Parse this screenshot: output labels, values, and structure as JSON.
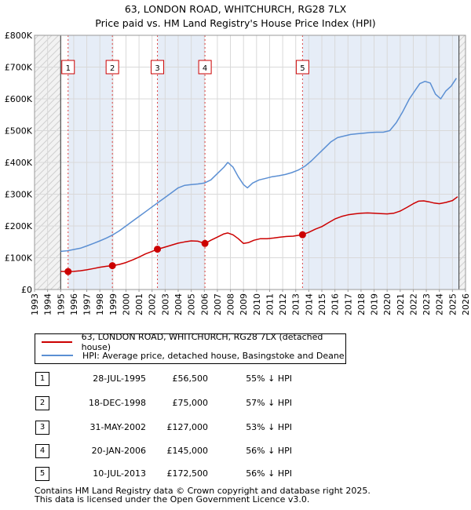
{
  "title_line1": "63, LONDON ROAD, WHITCHURCH, RG28 7LX",
  "title_line2": "Price paid vs. HM Land Registry's House Price Index (HPI)",
  "chart_data": {
    "type": "line",
    "title": "63, LONDON ROAD, WHITCHURCH, RG28 7LX — Price paid vs. HM Land Registry's House Price Index (HPI)",
    "xlabel": "",
    "ylabel": "",
    "xlim": [
      1993,
      2026
    ],
    "ylim": [
      0,
      800000
    ],
    "y_ticks": [
      0,
      100000,
      200000,
      300000,
      400000,
      500000,
      600000,
      700000,
      800000
    ],
    "y_tick_labels": [
      "£0",
      "£100K",
      "£200K",
      "£300K",
      "£400K",
      "£500K",
      "£600K",
      "£700K",
      "£800K"
    ],
    "x_ticks": [
      1993,
      1994,
      1995,
      1996,
      1997,
      1998,
      1999,
      2000,
      2001,
      2002,
      2003,
      2004,
      2005,
      2006,
      2007,
      2008,
      2009,
      2010,
      2011,
      2012,
      2013,
      2014,
      2015,
      2016,
      2017,
      2018,
      2019,
      2020,
      2021,
      2022,
      2023,
      2024,
      2025,
      2026
    ],
    "x_tick_labels": [
      "1993",
      "1994",
      "1995",
      "1996",
      "1997",
      "1998",
      "1999",
      "2000",
      "2001",
      "2002",
      "2003",
      "2004",
      "2005",
      "2006",
      "2007",
      "2008",
      "2009",
      "2010",
      "2011",
      "2012",
      "2013",
      "2014",
      "2015",
      "2016",
      "2017",
      "2018",
      "2019",
      "2020",
      "2021",
      "2022",
      "2023",
      "2024",
      "2025",
      "2026"
    ],
    "data_range_start": 1995.0,
    "data_range_end": 2025.5,
    "series": [
      {
        "name": "63, LONDON ROAD, WHITCHURCH, RG28 7LX (detached house)",
        "color": "#cc0000",
        "x": [
          1995.0,
          1995.57,
          1996.0,
          1996.5,
          1997.0,
          1997.5,
          1998.0,
          1998.5,
          1998.96,
          1999.5,
          2000.0,
          2000.5,
          2001.0,
          2001.5,
          2002.0,
          2002.41,
          2002.8,
          2003.2,
          2003.6,
          2004.0,
          2004.5,
          2005.0,
          2005.5,
          2006.05,
          2006.5,
          2007.0,
          2007.5,
          2007.8,
          2008.2,
          2008.6,
          2009.0,
          2009.4,
          2009.8,
          2010.3,
          2010.8,
          2011.3,
          2011.8,
          2012.3,
          2012.8,
          2013.52,
          2014.0,
          2014.5,
          2015.0,
          2015.5,
          2016.0,
          2016.5,
          2017.0,
          2017.5,
          2018.0,
          2018.5,
          2019.0,
          2019.5,
          2020.0,
          2020.5,
          2021.0,
          2021.5,
          2022.0,
          2022.4,
          2022.8,
          2023.2,
          2023.6,
          2024.0,
          2024.5,
          2025.0,
          2025.4
        ],
        "values": [
          57000,
          56500,
          57000,
          59000,
          62000,
          66000,
          70000,
          73000,
          75000,
          79000,
          85000,
          93000,
          102000,
          112000,
          120000,
          127000,
          131000,
          136000,
          141000,
          146000,
          150000,
          153000,
          152000,
          145000,
          155000,
          165000,
          175000,
          178000,
          172000,
          160000,
          145000,
          148000,
          155000,
          160000,
          160000,
          162000,
          165000,
          167000,
          168000,
          172500,
          180000,
          190000,
          198000,
          210000,
          222000,
          230000,
          235000,
          238000,
          240000,
          241000,
          240000,
          239000,
          238000,
          240000,
          247000,
          258000,
          270000,
          278000,
          279000,
          276000,
          272000,
          270000,
          274000,
          280000,
          292000
        ]
      },
      {
        "name": "HPI: Average price, detached house, Basingstoke and Deane",
        "color": "#5b8fd3",
        "x": [
          1995.0,
          1995.5,
          1996.0,
          1996.5,
          1997.0,
          1997.5,
          1998.0,
          1998.5,
          1999.0,
          1999.5,
          2000.0,
          2000.5,
          2001.0,
          2001.5,
          2002.0,
          2002.5,
          2003.0,
          2003.5,
          2004.0,
          2004.5,
          2005.0,
          2005.5,
          2006.0,
          2006.5,
          2007.0,
          2007.5,
          2007.8,
          2008.2,
          2008.6,
          2009.0,
          2009.3,
          2009.7,
          2010.2,
          2010.7,
          2011.2,
          2011.7,
          2012.2,
          2012.7,
          2013.2,
          2013.7,
          2014.2,
          2014.7,
          2015.2,
          2015.7,
          2016.2,
          2016.7,
          2017.2,
          2017.7,
          2018.2,
          2018.7,
          2019.2,
          2019.7,
          2020.2,
          2020.7,
          2021.2,
          2021.7,
          2022.2,
          2022.5,
          2022.9,
          2023.3,
          2023.7,
          2024.1,
          2024.5,
          2024.9,
          2025.3
        ],
        "values": [
          120000,
          122000,
          126000,
          130000,
          137000,
          145000,
          153000,
          162000,
          172000,
          185000,
          200000,
          215000,
          230000,
          245000,
          260000,
          275000,
          290000,
          305000,
          320000,
          328000,
          330000,
          332000,
          335000,
          345000,
          365000,
          385000,
          400000,
          385000,
          355000,
          330000,
          320000,
          335000,
          345000,
          350000,
          355000,
          358000,
          362000,
          368000,
          376000,
          388000,
          405000,
          425000,
          445000,
          465000,
          478000,
          483000,
          488000,
          490000,
          492000,
          494000,
          495000,
          495000,
          500000,
          525000,
          560000,
          600000,
          630000,
          648000,
          655000,
          650000,
          615000,
          600000,
          625000,
          640000,
          665000
        ]
      }
    ],
    "transactions": [
      {
        "label": "1",
        "x": 1995.57,
        "price": 56500
      },
      {
        "label": "2",
        "x": 1998.96,
        "price": 75000
      },
      {
        "label": "3",
        "x": 2002.41,
        "price": 127000
      },
      {
        "label": "4",
        "x": 2006.05,
        "price": 145000
      },
      {
        "label": "5",
        "x": 2013.52,
        "price": 172500
      }
    ]
  },
  "legend": {
    "items": [
      {
        "label": "63, LONDON ROAD, WHITCHURCH, RG28 7LX (detached house)",
        "color": "#cc0000"
      },
      {
        "label": "HPI: Average price, detached house, Basingstoke and Deane",
        "color": "#5b8fd3"
      }
    ]
  },
  "table": {
    "rows": [
      {
        "num": "1",
        "date": "28-JUL-1995",
        "price": "£56,500",
        "hpi": "55% ↓ HPI"
      },
      {
        "num": "2",
        "date": "18-DEC-1998",
        "price": "£75,000",
        "hpi": "57% ↓ HPI"
      },
      {
        "num": "3",
        "date": "31-MAY-2002",
        "price": "£127,000",
        "hpi": "53% ↓ HPI"
      },
      {
        "num": "4",
        "date": "20-JAN-2006",
        "price": "£145,000",
        "hpi": "56% ↓ HPI"
      },
      {
        "num": "5",
        "date": "10-JUL-2013",
        "price": "£172,500",
        "hpi": "56% ↓ HPI"
      }
    ]
  },
  "footer": {
    "line1": "Contains HM Land Registry data © Crown copyright and database right 2025.",
    "line2": "This data is licensed under the Open Government Licence v3.0."
  }
}
